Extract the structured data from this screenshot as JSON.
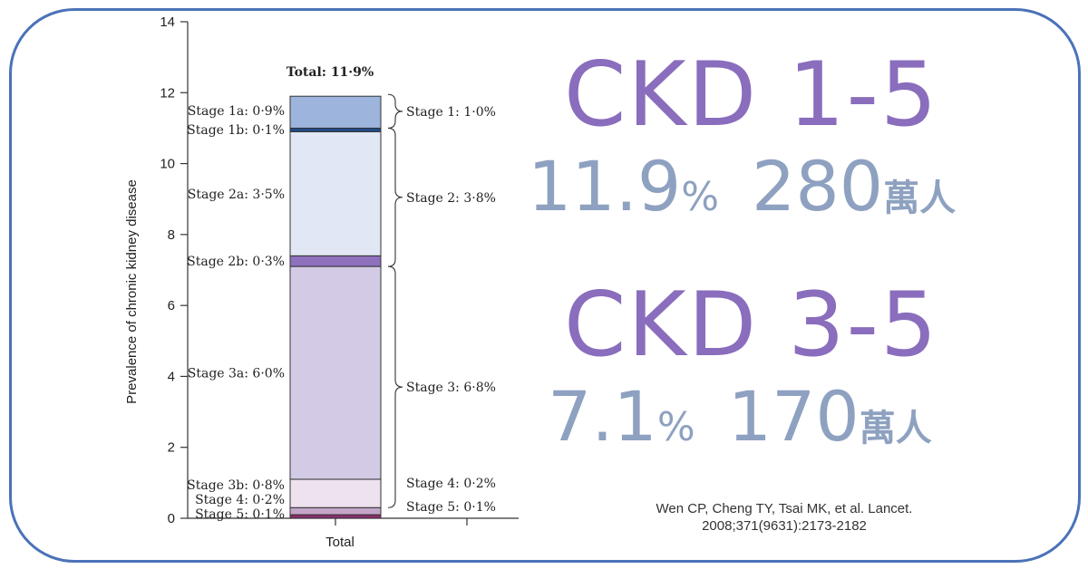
{
  "chart_data": {
    "type": "bar",
    "stacked": true,
    "categories": [
      "Total"
    ],
    "xlabel": "Total",
    "ylabel": "Prevalence of chronic kidney disease",
    "ylim": [
      0,
      14
    ],
    "yticks": [
      0,
      2,
      4,
      6,
      8,
      10,
      12,
      14
    ],
    "total_label": "Total: 11·9%",
    "series": [
      {
        "name": "Stage 5",
        "values": [
          0.1
        ],
        "color": "#8b2f6e",
        "label": "Stage 5: 0·1%"
      },
      {
        "name": "Stage 4",
        "values": [
          0.2
        ],
        "color": "#c4a6c9",
        "label": "Stage 4: 0·2%"
      },
      {
        "name": "Stage 3b",
        "values": [
          0.8
        ],
        "color": "#ede2ee",
        "label": "Stage 3b: 0·8%"
      },
      {
        "name": "Stage 3a",
        "values": [
          6.0
        ],
        "color": "#d3cbe6",
        "label": "Stage 3a: 6·0%"
      },
      {
        "name": "Stage 2b",
        "values": [
          0.3
        ],
        "color": "#8e70bd",
        "label": "Stage 2b: 0·3%"
      },
      {
        "name": "Stage 2a",
        "values": [
          3.5
        ],
        "color": "#e1e7f4",
        "label": "Stage 2a: 3·5%"
      },
      {
        "name": "Stage 1b",
        "values": [
          0.1
        ],
        "color": "#1f4b8a",
        "label": "Stage 1b: 0·1%"
      },
      {
        "name": "Stage 1a",
        "values": [
          0.9
        ],
        "color": "#9db4dc",
        "label": "Stage 1a: 0·9%"
      }
    ],
    "groups": [
      {
        "label": "Stage 1: 1·0%",
        "from": 11.0,
        "to": 11.95
      },
      {
        "label": "Stage 2: 3·8%",
        "from": 7.1,
        "to": 11.0
      },
      {
        "label": "Stage 3: 6·8%",
        "from": 0.3,
        "to": 7.1
      },
      {
        "label": "Stage 4: 0·2%",
        "value": 0.2
      },
      {
        "label": "Stage 5: 0·1%",
        "value": 0.1
      }
    ]
  },
  "headline": {
    "ckd15": {
      "title": "CKD 1-5",
      "percent": "11.9",
      "pct_sign": "%",
      "count": "280",
      "unit": "萬人"
    },
    "ckd35": {
      "title": "CKD 3-5",
      "percent": "7.1",
      "pct_sign": "%",
      "count": "170",
      "unit": "萬人"
    }
  },
  "citation": {
    "line1": "Wen CP, Cheng TY, Tsai MK, et al. Lancet.",
    "line2": "2008;371(9631):2173-2182"
  },
  "colors": {
    "frame": "#4b72b8",
    "title": "#8a6dbd",
    "subtitle": "#8ea1c0"
  }
}
